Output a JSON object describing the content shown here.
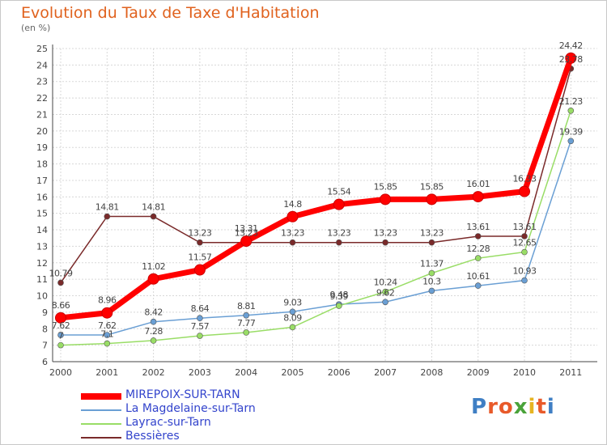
{
  "title": "Evolution du Taux de Taxe d'Habitation",
  "subtitle": "(en %)",
  "logo": "Proxiti",
  "chart_data": {
    "type": "line",
    "x": [
      "2000",
      "2001",
      "2002",
      "2003",
      "2004",
      "2005",
      "2006",
      "2007",
      "2008",
      "2009",
      "2010",
      "2011"
    ],
    "ylim": [
      6,
      25
    ],
    "yticks": [
      6,
      7,
      8,
      9,
      10,
      11,
      12,
      13,
      14,
      15,
      16,
      17,
      18,
      19,
      20,
      21,
      22,
      23,
      24,
      25
    ],
    "grid": true,
    "legend_position": "bottom",
    "series": [
      {
        "name": "MIREPOIX-SUR-TARN",
        "color": "#ff0000",
        "values": [
          8.66,
          8.96,
          11.02,
          11.57,
          13.31,
          14.8,
          15.54,
          15.85,
          15.85,
          16.01,
          16.33,
          24.42
        ],
        "labels": [
          "8.66",
          "8.96",
          "11.02",
          "11.57",
          "13.31",
          "14.8",
          "15.54",
          "15.85",
          "15.85",
          "16.01",
          "16.33",
          "24.42"
        ]
      },
      {
        "name": "La Magdelaine-sur-Tarn",
        "color": "#6a9fd4",
        "values": [
          7.62,
          7.62,
          8.42,
          8.64,
          8.81,
          9.03,
          9.48,
          9.62,
          10.3,
          10.61,
          10.93,
          19.39
        ],
        "labels": [
          "7.62",
          "7.62",
          "8.42",
          "8.64",
          "8.81",
          "9.03",
          "9.48",
          "9.62",
          "10.3",
          "10.61",
          "10.93",
          "19.39"
        ]
      },
      {
        "name": "Layrac-sur-Tarn",
        "color": "#99dd66",
        "values": [
          7.0,
          7.1,
          7.28,
          7.57,
          7.77,
          8.09,
          9.39,
          10.24,
          11.37,
          12.28,
          12.65,
          21.23
        ],
        "labels": [
          "7",
          "7.1",
          "7.28",
          "7.57",
          "7.77",
          "8.09",
          "9.39",
          "10.24",
          "11.37",
          "12.28",
          "12.65",
          "21.23"
        ]
      },
      {
        "name": "Bessières",
        "color": "#7a2a2a",
        "values": [
          10.79,
          14.81,
          14.81,
          13.23,
          13.23,
          13.23,
          13.23,
          13.23,
          13.23,
          13.61,
          13.61,
          23.78
        ],
        "labels": [
          "10.79",
          "14.81",
          "14.81",
          "13.23",
          "13.23",
          "13.23",
          "13.23",
          "13.23",
          "13.23",
          "13.61",
          "13.61",
          "23.78"
        ]
      }
    ]
  }
}
